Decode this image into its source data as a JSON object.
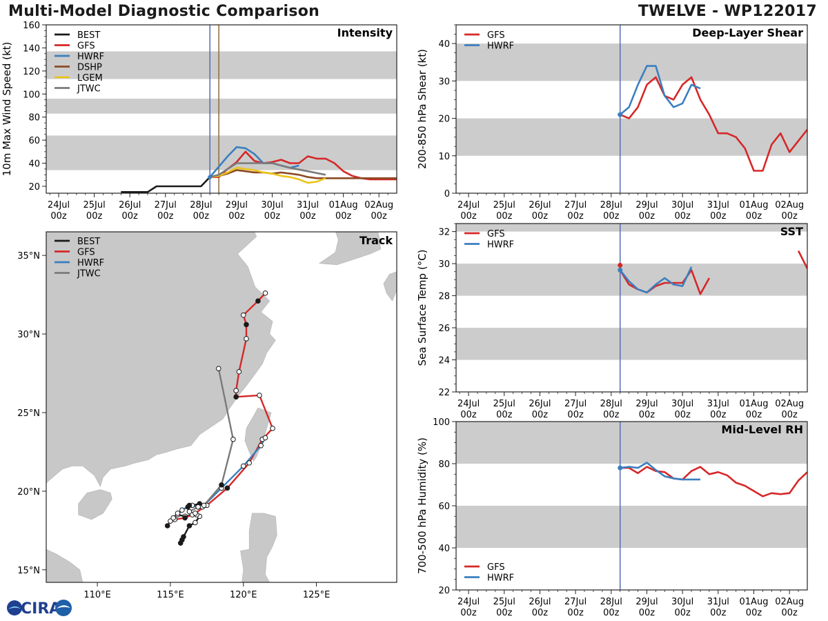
{
  "header": {
    "title_left": "Multi-Model Diagnostic Comparison",
    "title_right": "TWELVE - WP122017"
  },
  "logo": {
    "name": "CIRA"
  },
  "colors": {
    "BEST": "#1a1a1a",
    "GFS": "#d62728",
    "HWRF": "#3a7fbf",
    "DSHP": "#8c4a22",
    "LGEM": "#ecc319",
    "JTWC": "#7a7a7a",
    "band": "#cccccc",
    "land": "#c8c8c8",
    "vline_init": "#4f6db8",
    "vline_dshp": "#8c6a3a"
  },
  "time_axis": {
    "ticks": [
      0,
      1,
      2,
      3,
      4,
      5,
      6,
      7,
      8,
      9
    ],
    "tick_labels": [
      [
        "24Jul",
        "00z"
      ],
      [
        "25Jul",
        "00z"
      ],
      [
        "26Jul",
        "00z"
      ],
      [
        "27Jul",
        "00z"
      ],
      [
        "28Jul",
        "00z"
      ],
      [
        "29Jul",
        "00z"
      ],
      [
        "30Jul",
        "00z"
      ],
      [
        "31Jul",
        "00z"
      ],
      [
        "01Aug",
        "00z"
      ],
      [
        "02Aug",
        "00z"
      ]
    ],
    "range": [
      -0.35,
      9.5
    ],
    "init_time": 4.25
  },
  "chart_data": [
    {
      "id": "intensity",
      "type": "line",
      "title": "Intensity",
      "ylabel": "10m Max Wind Speed (kt)",
      "ylim": [
        14,
        160
      ],
      "yticks": [
        20,
        40,
        60,
        80,
        100,
        120,
        140,
        160
      ],
      "bands": [
        [
          34,
          64
        ],
        [
          83,
          96
        ],
        [
          113,
          137
        ]
      ],
      "vlines": [
        4.25,
        4.5
      ],
      "legend": [
        "BEST",
        "GFS",
        "HWRF",
        "DSHP",
        "LGEM",
        "JTWC"
      ],
      "series": [
        {
          "name": "BEST",
          "x": [
            1.75,
            2.5,
            2.75,
            3.0,
            3.5,
            4.0,
            4.25
          ],
          "y": [
            15,
            15,
            20,
            20,
            20,
            20,
            28
          ]
        },
        {
          "name": "GFS",
          "x": [
            4.25,
            4.5,
            4.75,
            5.0,
            5.25,
            5.5,
            5.75,
            6.0,
            6.25,
            6.5,
            6.75,
            7.0,
            7.25,
            7.5,
            7.75,
            8.0,
            8.25,
            8.5,
            8.75,
            9.0,
            9.5
          ],
          "y": [
            28,
            28,
            35,
            41,
            50,
            42,
            40,
            41,
            43,
            40,
            40,
            46,
            44,
            44,
            40,
            33,
            29,
            27,
            26,
            26,
            26
          ]
        },
        {
          "name": "HWRF",
          "x": [
            4.25,
            4.5,
            4.75,
            5.0,
            5.25,
            5.5,
            5.75,
            6.0,
            6.25,
            6.5,
            6.75
          ],
          "y": [
            28,
            37,
            46,
            54,
            53,
            48,
            40,
            40,
            38,
            36,
            38
          ]
        },
        {
          "name": "DSHP",
          "x": [
            4.25,
            4.5,
            4.75,
            5.0,
            5.25,
            5.5,
            5.75,
            6.0,
            6.25,
            6.5,
            6.75,
            7.0,
            7.25,
            7.5,
            7.75,
            8.0,
            8.25,
            8.5,
            8.75,
            9.0,
            9.5
          ],
          "y": [
            28,
            29,
            31,
            34,
            33,
            32,
            32,
            31,
            32,
            31,
            30,
            28,
            27,
            27,
            27,
            27,
            27,
            27,
            27,
            27,
            27
          ]
        },
        {
          "name": "LGEM",
          "x": [
            4.25,
            4.5,
            4.75,
            5.0,
            5.25,
            5.5,
            5.75,
            6.0,
            6.25,
            6.5,
            6.75,
            7.0,
            7.25,
            7.5
          ],
          "y": [
            28,
            29,
            32,
            36,
            35,
            34,
            32,
            31,
            29,
            28,
            26,
            23,
            24,
            27
          ]
        },
        {
          "name": "JTWC",
          "x": [
            4.25,
            4.5,
            5.0,
            5.5,
            6.0,
            6.5,
            7.0,
            7.5
          ],
          "y": [
            28,
            30,
            40,
            40,
            40,
            36,
            33,
            30
          ]
        }
      ]
    },
    {
      "id": "shear",
      "type": "line",
      "title": "Deep-Layer Shear",
      "ylabel": "200-850 hPa Shear (kt)",
      "ylim": [
        0,
        45
      ],
      "yticks": [
        0,
        10,
        20,
        30,
        40
      ],
      "bands": [
        [
          10,
          20
        ],
        [
          30,
          40
        ]
      ],
      "vlines": [
        4.25
      ],
      "legend": [
        "GFS",
        "HWRF"
      ],
      "init_point": {
        "x": 4.25,
        "y": 21,
        "series": "HWRF"
      },
      "series": [
        {
          "name": "GFS",
          "x": [
            4.25,
            4.5,
            4.75,
            5.0,
            5.25,
            5.5,
            5.75,
            6.0,
            6.25,
            6.5,
            6.75,
            7.0,
            7.25,
            7.5,
            7.75,
            8.0,
            8.25,
            8.5,
            8.75,
            9.0,
            9.25,
            9.5
          ],
          "y": [
            21,
            20,
            23,
            29,
            31,
            26,
            25,
            29,
            31,
            25,
            21,
            16,
            16,
            15,
            12,
            6,
            6,
            13,
            16,
            11,
            14,
            17
          ]
        },
        {
          "name": "HWRF",
          "x": [
            4.25,
            4.5,
            4.75,
            5.0,
            5.25,
            5.5,
            5.75,
            6.0,
            6.25,
            6.5
          ],
          "y": [
            21,
            23,
            29,
            34,
            34,
            26,
            23,
            24,
            29,
            28
          ]
        }
      ]
    },
    {
      "id": "sst",
      "type": "line",
      "title": "SST",
      "ylabel": "Sea Surface Temp (°C)",
      "ylim": [
        22,
        32.5
      ],
      "yticks": [
        22,
        24,
        26,
        28,
        30,
        32
      ],
      "bands": [
        [
          24,
          26
        ],
        [
          28,
          30
        ],
        [
          32,
          32.5
        ]
      ],
      "vlines": [
        4.25
      ],
      "legend": [
        "GFS",
        "HWRF"
      ],
      "init_point": {
        "x": 4.25,
        "y": 29.9,
        "series": "GFS",
        "y2": 29.6
      },
      "series": [
        {
          "name": "GFS",
          "x": [
            4.25,
            4.5,
            4.75,
            5.0,
            5.25,
            5.5,
            5.75,
            6.0,
            6.25,
            6.5,
            6.75,
            7.0,
            9.25,
            9.5
          ],
          "y": [
            29.6,
            28.7,
            28.4,
            28.2,
            28.6,
            28.8,
            28.8,
            28.8,
            29.6,
            28.1,
            29.1,
            null,
            30.8,
            29.7
          ]
        },
        {
          "name": "HWRF",
          "x": [
            4.25,
            4.5,
            4.75,
            5.0,
            5.25,
            5.5,
            5.75,
            6.0,
            6.25
          ],
          "y": [
            29.6,
            28.9,
            28.4,
            28.2,
            28.7,
            29.1,
            28.7,
            28.6,
            29.8
          ]
        }
      ]
    },
    {
      "id": "rh",
      "type": "line",
      "title": "Mid-Level RH",
      "ylabel": "700-500 hPa Humidity (%)",
      "ylim": [
        20,
        100
      ],
      "yticks": [
        20,
        40,
        60,
        80,
        100
      ],
      "bands": [
        [
          40,
          60
        ],
        [
          80,
          100
        ]
      ],
      "vlines": [
        4.25
      ],
      "legend": [
        "GFS",
        "HWRF"
      ],
      "init_point": {
        "x": 4.25,
        "y": 78,
        "series": "HWRF"
      },
      "series": [
        {
          "name": "GFS",
          "x": [
            4.25,
            4.5,
            4.75,
            5.0,
            5.25,
            5.5,
            5.75,
            6.0,
            6.25,
            6.5,
            6.75,
            7.0,
            7.25,
            7.5,
            7.75,
            8.0,
            8.25,
            8.5,
            8.75,
            9.0,
            9.25,
            9.5
          ],
          "y": [
            78,
            78,
            75.5,
            78.5,
            76.5,
            76,
            73,
            72.5,
            76.5,
            78.5,
            75,
            76,
            74.5,
            71,
            69.5,
            67,
            64.5,
            66,
            65.5,
            66,
            72,
            76
          ]
        },
        {
          "name": "HWRF",
          "x": [
            4.25,
            4.5,
            4.75,
            5.0,
            5.25,
            5.5,
            5.75,
            6.0,
            6.25,
            6.5
          ],
          "y": [
            78,
            78.5,
            78,
            80.5,
            77,
            74,
            73,
            72.5,
            72.5,
            72.5
          ]
        }
      ]
    },
    {
      "id": "track",
      "type": "scatter",
      "title": "Track",
      "xlim": [
        106.5,
        130.5
      ],
      "ylim": [
        14.2,
        36.5
      ],
      "xticks": [
        110,
        115,
        120,
        125
      ],
      "xtick_labels": [
        "110°E",
        "115°E",
        "120°E",
        "125°E"
      ],
      "yticks": [
        15,
        20,
        25,
        30,
        35
      ],
      "ytick_labels": [
        "15°N",
        "20°N",
        "25°N",
        "30°N",
        "35°N"
      ],
      "legend": [
        "BEST",
        "GFS",
        "HWRF",
        "JTWC"
      ],
      "series": [
        {
          "name": "BEST",
          "lon": [
            115.7,
            115.8,
            115.9,
            116.3,
            116.7,
            117.0,
            116.8,
            116.5,
            116.0,
            115.5,
            115.8,
            116.2,
            116.5,
            117.0
          ],
          "lat": [
            16.7,
            16.9,
            17.1,
            17.8,
            18.0,
            18.4,
            18.5,
            18.5,
            18.4,
            18.5,
            18.8,
            19.0,
            19.1,
            19.2
          ],
          "filled": [
            true,
            true,
            true,
            true,
            false,
            false,
            false,
            false,
            false,
            false,
            false,
            true,
            false,
            true
          ]
        },
        {
          "name": "GFS",
          "lon": [
            114.8,
            115.0,
            115.3,
            116.0,
            116.7,
            117.5,
            118.9,
            120.4,
            121.3,
            122.0,
            121.1,
            119.5,
            119.5,
            119.7,
            120.2,
            120.2,
            120.0,
            121.0,
            121.5
          ],
          "lat": [
            17.8,
            18.1,
            18.2,
            18.3,
            18.6,
            19.1,
            20.2,
            21.8,
            23.3,
            24.0,
            26.1,
            26.0,
            26.4,
            27.6,
            29.7,
            30.6,
            31.2,
            32.1,
            32.6
          ],
          "filled": [
            true,
            false,
            false,
            true,
            false,
            false,
            true,
            false,
            false,
            false,
            false,
            true,
            false,
            false,
            false,
            true,
            false,
            true,
            false
          ]
        },
        {
          "name": "HWRF",
          "lon": [
            115.2,
            115.5,
            116.3,
            116.9,
            117.2,
            118.5,
            120.0,
            121.2,
            121.5
          ],
          "lat": [
            18.3,
            18.6,
            19.1,
            19.0,
            19.0,
            20.2,
            21.6,
            22.9,
            23.4
          ],
          "filled": [
            false,
            false,
            true,
            false,
            false,
            false,
            false,
            false,
            false
          ]
        },
        {
          "name": "JTWC",
          "lon": [
            116.3,
            116.9,
            117.3,
            118.5,
            119.3,
            118.3
          ],
          "lat": [
            18.7,
            19.0,
            19.1,
            20.4,
            23.3,
            27.8
          ],
          "filled": [
            false,
            false,
            false,
            true,
            false,
            false
          ]
        }
      ]
    }
  ]
}
